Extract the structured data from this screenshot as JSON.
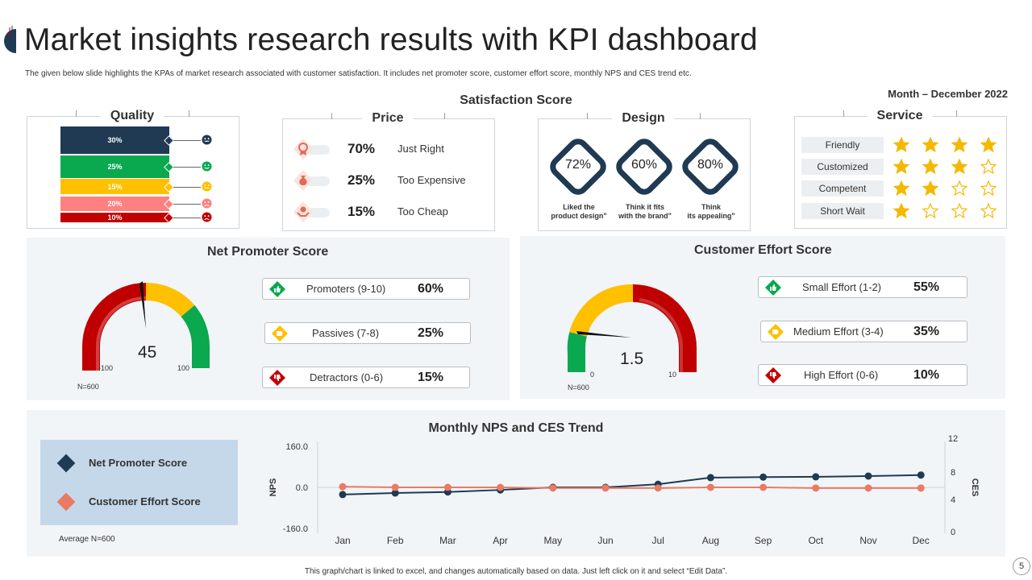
{
  "header": {
    "title": "Market insights research results with KPI dashboard",
    "subtitle": "The given below slide highlights the KPAs of market research associated with customer satisfaction. It includes net promoter score, customer effort score, monthly NPS and CES  trend etc.",
    "month": "Month – December 2022",
    "satisfaction_title": "Satisfaction Score"
  },
  "quality": {
    "title": "Quality",
    "bars": [
      {
        "label": "30%",
        "color": "#1f3a52",
        "face": "neutral-dark"
      },
      {
        "label": "25%",
        "color": "#0aa84f",
        "face": "happy-green"
      },
      {
        "label": "15%",
        "color": "#ffc000",
        "face": "neutral-yellow"
      },
      {
        "label": "20%",
        "color": "#ff8080",
        "face": "sad-pink"
      },
      {
        "label": "10%",
        "color": "#c00000",
        "face": "sad-red"
      }
    ]
  },
  "price": {
    "title": "Price",
    "rows": [
      {
        "pct": "70%",
        "label": "Just Right",
        "icon": "medal-icon"
      },
      {
        "pct": "25%",
        "label": "Too Expensive",
        "icon": "money-bag-icon"
      },
      {
        "pct": "15%",
        "label": "Too Cheap",
        "icon": "hand-coin-icon"
      }
    ]
  },
  "design": {
    "title": "Design",
    "items": [
      {
        "pct": "72%",
        "caption1": "Liked the",
        "caption2": "product design\""
      },
      {
        "pct": "60%",
        "caption1": "Think it fits",
        "caption2": "with the brand\""
      },
      {
        "pct": "80%",
        "caption1": "Think",
        "caption2": "its appealing\""
      }
    ]
  },
  "service": {
    "title": "Service",
    "rows": [
      {
        "label": "Friendly",
        "stars": 4
      },
      {
        "label": "Customized",
        "stars": 3
      },
      {
        "label": "Competent",
        "stars": 2
      },
      {
        "label": "Short Wait",
        "stars": 1
      }
    ],
    "star_color": "#f5b800"
  },
  "nps": {
    "title": "Net Promoter Score",
    "value": "45",
    "min": "-100",
    "max": "100",
    "n": "N=600",
    "rows": [
      {
        "label": "Promoters (9-10)",
        "pct": "60%",
        "icon": "thumbs-up-icon",
        "color": "#0aa84f"
      },
      {
        "label": "Passives (7-8)",
        "pct": "25%",
        "icon": "thumb-sideways-icon",
        "color": "#ffc000"
      },
      {
        "label": "Detractors (0-6)",
        "pct": "15%",
        "icon": "thumbs-down-icon",
        "color": "#c00000"
      }
    ]
  },
  "ces": {
    "title": "Customer Effort Score",
    "value": "1.5",
    "min": "0",
    "max": "10",
    "n": "N=600",
    "rows": [
      {
        "label": "Small Effort (1-2)",
        "pct": "55%",
        "icon": "thumbs-up-icon",
        "color": "#0aa84f"
      },
      {
        "label": "Medium Effort (3-4)",
        "pct": "35%",
        "icon": "thumb-sideways-icon",
        "color": "#ffc000"
      },
      {
        "label": "High Effort (0-6)",
        "pct": "10%",
        "icon": "thumbs-down-icon",
        "color": "#c00000"
      }
    ]
  },
  "trend": {
    "average": "Average N=600",
    "legend": [
      {
        "label": "Net Promoter Score",
        "color": "#1f3a52"
      },
      {
        "label": "Customer Effort Score",
        "color": "#ea7a63"
      }
    ]
  },
  "chart_data": {
    "type": "line",
    "title": "Monthly NPS and CES Trend",
    "categories": [
      "Jan",
      "Feb",
      "Mar",
      "Apr",
      "May",
      "Jun",
      "Jul",
      "Aug",
      "Sep",
      "Oct",
      "Nov",
      "Dec"
    ],
    "ylabel": "NPS",
    "y2label": "CES",
    "ylim": [
      -160,
      160
    ],
    "y2lim": [
      0,
      12
    ],
    "yticks": [
      "160.0",
      "0.0",
      "-160.0"
    ],
    "y2ticks": [
      "12",
      "8",
      "4",
      "0"
    ],
    "series": [
      {
        "name": "Net Promoter Score",
        "axis": "left",
        "color": "#1f3a52",
        "values": [
          -28,
          -22,
          -18,
          -10,
          0,
          0,
          12,
          38,
          40,
          41,
          44,
          48
        ]
      },
      {
        "name": "Customer Effort Score",
        "axis": "right",
        "color": "#ea7a63",
        "values": [
          6.1,
          6.0,
          6.0,
          6.0,
          5.9,
          5.9,
          5.9,
          6.0,
          6.0,
          5.9,
          5.9,
          5.9
        ]
      }
    ]
  },
  "footer": {
    "note": "This graph/chart is linked to excel, and changes automatically based on data. Just left click on it and select “Edit Data”.",
    "page": "5"
  }
}
